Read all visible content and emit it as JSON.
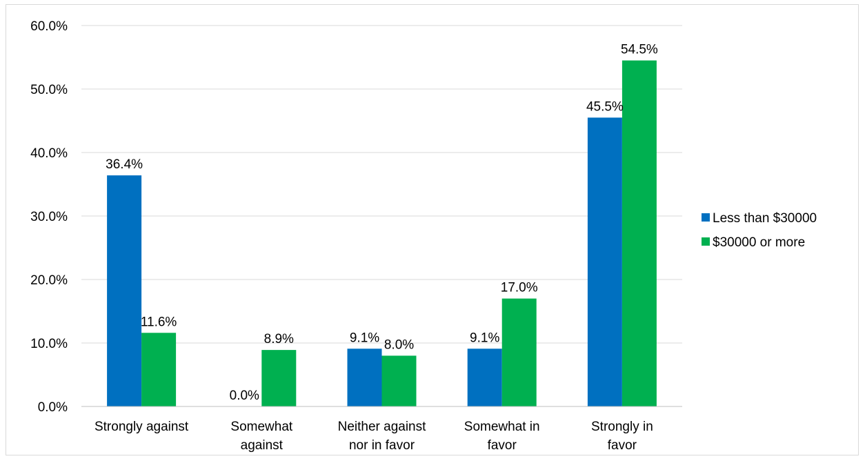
{
  "chart_data": {
    "type": "bar",
    "title": "",
    "xlabel": "",
    "ylabel": "",
    "ylim": [
      0,
      60
    ],
    "yticks": [
      0,
      10,
      20,
      30,
      40,
      50,
      60
    ],
    "ytick_labels": [
      "0.0%",
      "10.0%",
      "20.0%",
      "30.0%",
      "40.0%",
      "50.0%",
      "60.0%"
    ],
    "grid": true,
    "legend_position": "right",
    "categories": [
      [
        "Strongly against"
      ],
      [
        "Somewhat",
        "against"
      ],
      [
        "Neither against",
        "nor in favor"
      ],
      [
        "Somewhat in",
        "favor"
      ],
      [
        "Strongly in",
        "favor"
      ]
    ],
    "series": [
      {
        "name": "Less than $30000",
        "color": "#0070C0",
        "values": [
          36.4,
          0.0,
          9.1,
          9.1,
          45.5
        ],
        "labels": [
          "36.4%",
          "0.0%",
          "9.1%",
          "9.1%",
          "45.5%"
        ]
      },
      {
        "name": "$30000 or more",
        "color": "#00B050",
        "values": [
          11.6,
          8.9,
          8.0,
          17.0,
          54.5
        ],
        "labels": [
          "11.6%",
          "8.9%",
          "8.0%",
          "17.0%",
          "54.5%"
        ]
      }
    ]
  }
}
